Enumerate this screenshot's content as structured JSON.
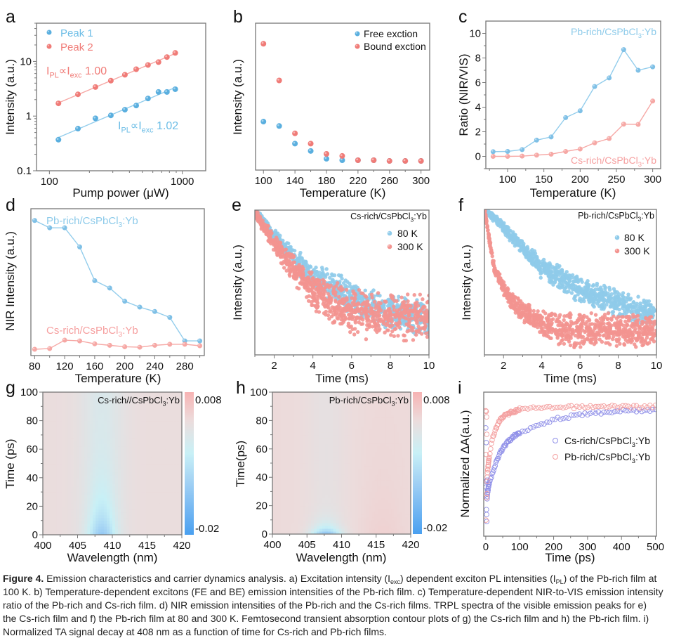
{
  "panels": [
    "a",
    "b",
    "c",
    "d",
    "e",
    "f",
    "g",
    "h",
    "i"
  ],
  "colors": {
    "blue": "#5aafdf",
    "blue_line": "#93cdec",
    "red": "#f07b77",
    "red_line": "#f6a8a5",
    "violet": "#8f8fe8",
    "axis": "#777777"
  },
  "chart_data": [
    {
      "panel": "a",
      "type": "scatter",
      "xscale": "log",
      "yscale": "log",
      "xlabel": "Pump power (μW)",
      "ylabel": "Intensity (a.u.)",
      "xlim": [
        80,
        1500
      ],
      "ylim": [
        0.1,
        50
      ],
      "xticks": [
        100,
        1000
      ],
      "yticks": [
        0.1,
        1,
        10
      ],
      "series": [
        {
          "name": "Peak 1",
          "color": "#5aafdf",
          "fit": "linear fit (log-log)",
          "x": [
            117,
            164,
            222,
            290,
            370,
            450,
            552,
            662,
            766,
            885
          ],
          "y": [
            0.37,
            0.59,
            0.91,
            1.03,
            1.31,
            1.56,
            2.1,
            2.76,
            2.76,
            3.1
          ],
          "annotation": [
            {
              "t": "I"
            },
            {
              "t": "PL",
              "sub": true
            },
            {
              "t": "∝"
            },
            {
              "t": "I"
            },
            {
              "t": "exc",
              "sub": true
            },
            {
              "t": "  1.02"
            }
          ]
        },
        {
          "name": "Peak 2",
          "color": "#f07b77",
          "fit": "linear fit (log-log)",
          "x": [
            117,
            164,
            222,
            290,
            370,
            450,
            552,
            662,
            766,
            885
          ],
          "y": [
            1.71,
            2.5,
            3.4,
            4.45,
            5.7,
            7.2,
            8.6,
            9.7,
            12,
            14.3
          ],
          "annotation": [
            {
              "t": "I"
            },
            {
              "t": "PL",
              "sub": true
            },
            {
              "t": "∝"
            },
            {
              "t": "I"
            },
            {
              "t": "exc",
              "sub": true
            },
            {
              "t": "  1.00"
            }
          ]
        }
      ],
      "legend": "top-left"
    },
    {
      "panel": "b",
      "type": "scatter",
      "xlabel": "Temperature (K)",
      "ylabel": "Intensity (a.u.)",
      "xlim": [
        90,
        311
      ],
      "ylim": [
        0,
        1
      ],
      "xticks": [
        100,
        140,
        180,
        220,
        260,
        300
      ],
      "yticks": [],
      "series": [
        {
          "name": "Free exction",
          "color": "#5aafdf",
          "x": [
            100,
            120,
            140,
            160,
            180,
            200,
            220,
            240,
            260,
            280,
            300
          ],
          "y": [
            0.33,
            0.3,
            0.18,
            0.13,
            0.077,
            0.067,
            0.067,
            0.067,
            0.062,
            0.062,
            0.062
          ]
        },
        {
          "name": "Bound exction",
          "color": "#f07b77",
          "x": [
            100,
            120,
            140,
            160,
            180,
            200,
            220,
            240,
            260,
            280,
            300
          ],
          "y": [
            0.86,
            0.61,
            0.25,
            0.18,
            0.11,
            0.096,
            0.067,
            0.067,
            0.062,
            0.062,
            0.062
          ]
        }
      ],
      "legend": "top-right"
    },
    {
      "panel": "c",
      "type": "line",
      "xlabel": "Temperature (K)",
      "ylabel": "Ratio (NIR/VIS)",
      "xlim": [
        70,
        311
      ],
      "ylim": [
        -1,
        11
      ],
      "xticks": [
        100,
        150,
        200,
        250,
        300
      ],
      "yticks": [
        0,
        2,
        4,
        6,
        8,
        10
      ],
      "series": [
        {
          "name": [
            {
              "t": "Pb-rich/CsPbCl"
            },
            {
              "t": "3",
              "sub": true
            },
            {
              "t": ":Yb"
            }
          ],
          "color": "#5aafdf",
          "x": [
            80,
            100,
            120,
            140,
            160,
            180,
            200,
            220,
            240,
            260,
            280,
            300
          ],
          "y": [
            0.38,
            0.4,
            0.55,
            1.32,
            1.58,
            3.15,
            3.7,
            5.68,
            6.38,
            8.68,
            7.0,
            7.28
          ]
        },
        {
          "name": [
            {
              "t": "Cs-rich/CsPbCl"
            },
            {
              "t": "3",
              "sub": true
            },
            {
              "t": ":Yb"
            }
          ],
          "color": "#f07b77",
          "x": [
            80,
            100,
            120,
            140,
            160,
            180,
            200,
            220,
            240,
            260,
            280,
            300
          ],
          "y": [
            0,
            0,
            0.02,
            0.1,
            0.18,
            0.4,
            0.6,
            1.1,
            1.45,
            2.62,
            2.6,
            4.5
          ]
        }
      ]
    },
    {
      "panel": "d",
      "type": "line",
      "xlabel": "Temperature (K)",
      "ylabel": "NIR Intensity (a.u.)",
      "xlim": [
        75,
        306
      ],
      "ylim": [
        0,
        1
      ],
      "xticks": [
        80,
        120,
        160,
        200,
        240,
        280
      ],
      "yticks": [],
      "series": [
        {
          "name": [
            {
              "t": "Pb-rich/CsPbCl"
            },
            {
              "t": "3",
              "sub": true
            },
            {
              "t": ":Yb"
            }
          ],
          "color": "#5aafdf",
          "x": [
            80,
            100,
            120,
            140,
            160,
            180,
            200,
            220,
            240,
            260,
            280,
            300
          ],
          "y": [
            0.92,
            0.87,
            0.87,
            0.74,
            0.51,
            0.46,
            0.37,
            0.33,
            0.3,
            0.26,
            0.1,
            0.1
          ]
        },
        {
          "name": [
            {
              "t": "Cs-rich/CsPbCl"
            },
            {
              "t": "3",
              "sub": true
            },
            {
              "t": ":Yb"
            }
          ],
          "color": "#f07b77",
          "x": [
            80,
            100,
            120,
            140,
            160,
            180,
            200,
            220,
            240,
            260,
            280,
            300
          ],
          "y": [
            0.043,
            0.048,
            0.105,
            0.1,
            0.08,
            0.07,
            0.06,
            0.057,
            0.07,
            0.077,
            0.077,
            0.067
          ]
        }
      ]
    },
    {
      "panel": "e",
      "type": "scatter",
      "title": [
        {
          "t": "Cs-rich/CsPbCl"
        },
        {
          "t": "3",
          "sub": true
        },
        {
          "t": ":Yb"
        }
      ],
      "xlabel": "Time (ms)",
      "ylabel": "Intensity (a.u.)",
      "xlim": [
        1,
        10
      ],
      "ylim": [
        0,
        1
      ],
      "xticks": [
        2,
        4,
        6,
        8,
        10
      ],
      "yticks": [],
      "series": [
        {
          "name": "80 K",
          "color": "#8fcbea",
          "x": [
            1,
            2,
            3,
            4,
            5,
            6,
            7,
            8,
            9,
            10
          ],
          "y": [
            1.0,
            0.82,
            0.67,
            0.54,
            0.48,
            0.38,
            0.33,
            0.3,
            0.27,
            0.25
          ],
          "spread": 0.1
        },
        {
          "name": "300 K",
          "color": "#f39490",
          "x": [
            1,
            2,
            3,
            4,
            5,
            6,
            7,
            8,
            9,
            10
          ],
          "y": [
            0.98,
            0.77,
            0.59,
            0.45,
            0.36,
            0.3,
            0.27,
            0.26,
            0.26,
            0.26
          ],
          "spread": 0.14
        }
      ],
      "legend": "top-right"
    },
    {
      "panel": "f",
      "type": "scatter",
      "title": [
        {
          "t": "Pb-rich/CsPbCl"
        },
        {
          "t": "3",
          "sub": true
        },
        {
          "t": ":Yb"
        }
      ],
      "xlabel": "Time (ms)",
      "ylabel": "Intensity (a.u.)",
      "xlim": [
        1,
        10
      ],
      "ylim": [
        0,
        1
      ],
      "xticks": [
        2,
        4,
        6,
        8,
        10
      ],
      "yticks": [],
      "series": [
        {
          "name": "80 K",
          "color": "#8fcbea",
          "x": [
            1,
            2,
            3,
            4,
            5,
            6,
            7,
            8,
            9,
            10
          ],
          "y": [
            1.0,
            0.88,
            0.73,
            0.6,
            0.52,
            0.44,
            0.4,
            0.35,
            0.31,
            0.28
          ],
          "spread": 0.08
        },
        {
          "name": "300 K",
          "color": "#f39490",
          "x": [
            1,
            1.5,
            2,
            2.5,
            3,
            4,
            5,
            6,
            7,
            8,
            9,
            10
          ],
          "y": [
            1.0,
            0.6,
            0.46,
            0.36,
            0.3,
            0.22,
            0.17,
            0.17,
            0.17,
            0.17,
            0.17,
            0.17
          ],
          "spread": 0.1
        }
      ],
      "legend": "top-right"
    },
    {
      "panel": "g",
      "type": "heatmap",
      "title": [
        {
          "t": "Cs-rich//CsPbCl"
        },
        {
          "t": "3",
          "sub": true
        },
        {
          "t": ":Yb"
        }
      ],
      "xlabel": "Wavelength (nm)",
      "ylabel": "Time (ps)",
      "xlim": [
        400,
        420
      ],
      "ylim": [
        0,
        100
      ],
      "xticks": [
        400,
        405,
        410,
        415,
        420
      ],
      "yticks": [
        0,
        20,
        40,
        60,
        80,
        100
      ],
      "colorbar": {
        "max": "0.008",
        "min": "-0.02",
        "max_color": "#f7b3b3",
        "min_color": "#4aa0f0"
      },
      "minimum_at": {
        "wavelength": 408.5,
        "time": 0
      }
    },
    {
      "panel": "h",
      "type": "heatmap",
      "title": [
        {
          "t": "Pb-rich/CsPbCl"
        },
        {
          "t": "3",
          "sub": true
        },
        {
          "t": ":Yb"
        }
      ],
      "xlabel": "Wavelength (nm)",
      "ylabel": "Time(ps)",
      "xlim": [
        400,
        420
      ],
      "ylim": [
        0,
        100
      ],
      "xticks": [
        400,
        405,
        410,
        415,
        420
      ],
      "yticks": [
        0,
        20,
        40,
        60,
        80,
        100
      ],
      "colorbar": {
        "max": "0.008",
        "min": "-0.02",
        "max_color": "#f7b3b3",
        "min_color": "#4aa0f0"
      },
      "minimum_at": {
        "wavelength": 407.8,
        "time": 0
      }
    },
    {
      "panel": "i",
      "type": "scatter",
      "xlabel": "Time (ps)",
      "ylabel": "Normalized ΔA(a.u.)",
      "xlim": [
        -6,
        503
      ],
      "ylim": [
        0,
        1
      ],
      "xticks": [
        0,
        100,
        200,
        300,
        400,
        500
      ],
      "yticks": [],
      "series": [
        {
          "name": [
            {
              "t": "Cs-rich/CsPbCl"
            },
            {
              "t": "3",
              "sub": true
            },
            {
              "t": ":Yb"
            }
          ],
          "color": "#8f8fe8",
          "marker": "open-circle",
          "x": [
            0,
            5,
            10,
            20,
            35,
            50,
            75,
            100,
            150,
            200,
            300,
            400,
            500
          ],
          "y": [
            0.1,
            0.3,
            0.37,
            0.44,
            0.54,
            0.61,
            0.68,
            0.72,
            0.77,
            0.81,
            0.85,
            0.87,
            0.875
          ]
        },
        {
          "name": [
            {
              "t": "Pb-rich/CsPbCl"
            },
            {
              "t": "3",
              "sub": true
            },
            {
              "t": ":Yb"
            }
          ],
          "color": "#f4a0a0",
          "marker": "open-circle",
          "x": [
            0,
            5,
            10,
            20,
            35,
            50,
            75,
            100,
            150,
            200,
            300,
            400,
            500
          ],
          "y": [
            0.1,
            0.45,
            0.55,
            0.68,
            0.78,
            0.83,
            0.86,
            0.88,
            0.89,
            0.89,
            0.9,
            0.9,
            0.9
          ]
        }
      ],
      "legend": "right"
    }
  ],
  "caption": {
    "lines": [
      [
        {
          "t": "Figure 4.",
          "bold": true
        },
        {
          "t": "  Emission characteristics and carrier dynamics analysis. a) Excitation intensity (I"
        },
        {
          "t": "exc",
          "sub": true
        },
        {
          "t": ") dependent exciton PL intensities (I"
        },
        {
          "t": "PL",
          "sub": true
        },
        {
          "t": ") of the Pb-rich film at"
        }
      ],
      [
        {
          "t": "100 K. b) Temperature-dependent excitons (FE and BE) emission intensities of the Pb-rich film. c) Temperature-dependent NIR-to-VIS emission intensity"
        }
      ],
      [
        {
          "t": "ratio of the Pb-rich and Cs-rich film. d) NIR emission intensities of the Pb-rich and the Cs-rich films. TRPL spectra of the visible emission peaks for e)"
        }
      ],
      [
        {
          "t": "the Cs-rich film and f) the Pb-rich film at 80 and 300 K. Femtosecond transient absorption contour plots of g) the Cs-rich film and h) the Pb-rich film. i)"
        }
      ],
      [
        {
          "t": "Normalized TA signal decay at 408 nm as a function of time for Cs-rich and Pb-rich films."
        }
      ]
    ]
  }
}
